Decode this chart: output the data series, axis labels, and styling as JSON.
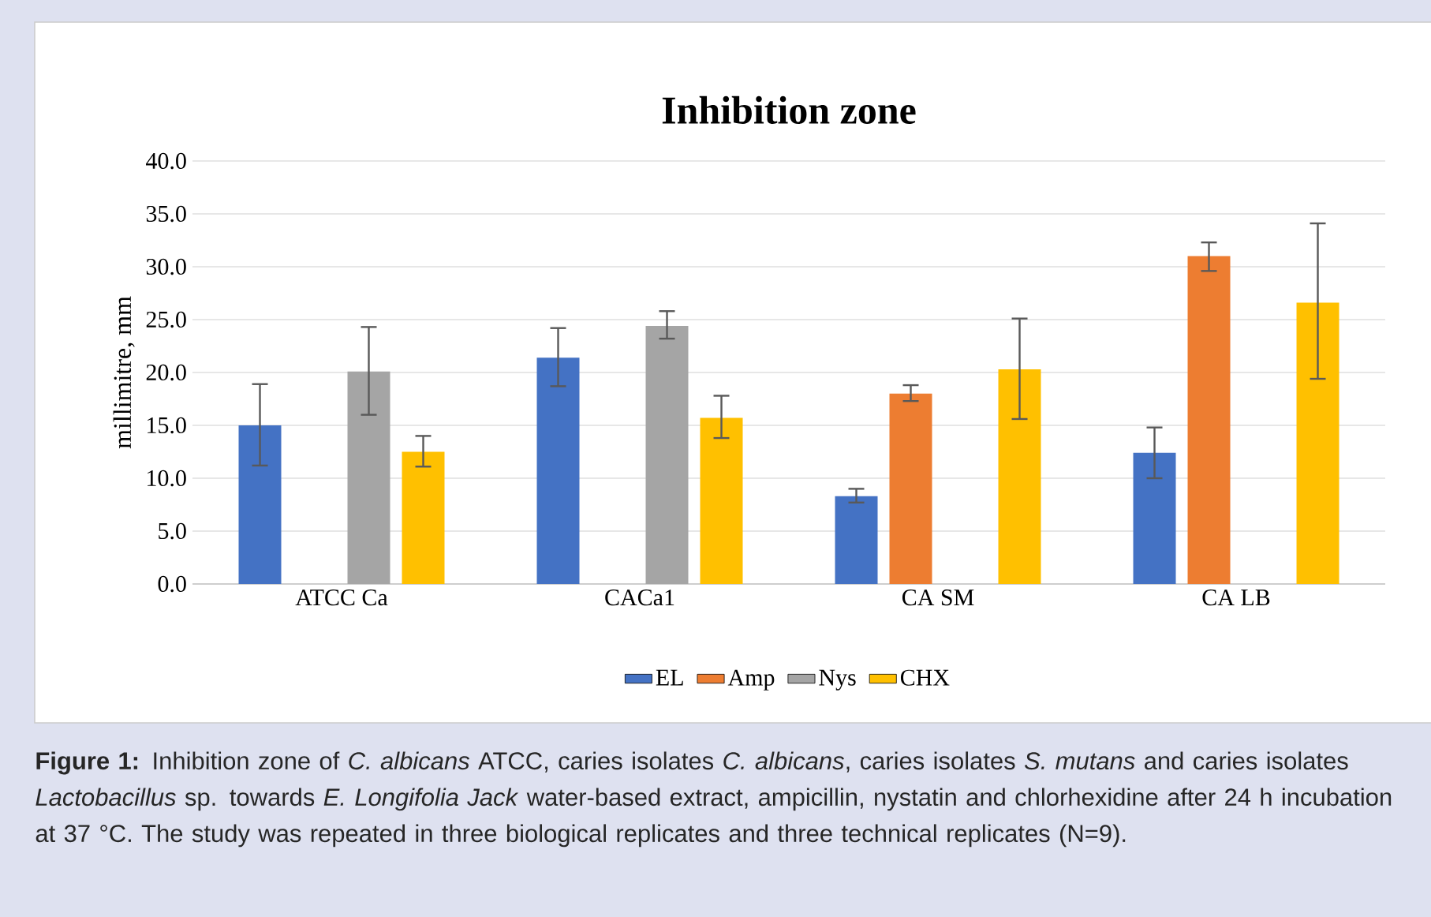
{
  "chart_data": {
    "type": "bar",
    "title": "Inhibition zone",
    "ylabel": "millimitre, mm",
    "categories": [
      "ATCC Ca",
      "CACa1",
      "CA SM",
      "CA LB"
    ],
    "series": [
      {
        "name": "EL",
        "color": "#4472c4",
        "values": [
          15.0,
          21.4,
          8.3,
          12.4
        ],
        "errors": [
          [
            11.2,
            18.9
          ],
          [
            18.7,
            24.2
          ],
          [
            7.7,
            9.0
          ],
          [
            10.0,
            14.8
          ]
        ]
      },
      {
        "name": "Amp",
        "color": "#ed7d31",
        "values": [
          0,
          0,
          18.0,
          31.0
        ],
        "errors": [
          null,
          null,
          [
            17.3,
            18.8
          ],
          [
            29.6,
            32.3
          ]
        ]
      },
      {
        "name": "Nys",
        "color": "#a5a5a5",
        "values": [
          20.1,
          24.4,
          0,
          0
        ],
        "errors": [
          [
            16.0,
            24.3
          ],
          [
            23.2,
            25.8
          ],
          null,
          null
        ]
      },
      {
        "name": "CHX",
        "color": "#ffc000",
        "values": [
          12.5,
          15.7,
          20.3,
          26.6
        ],
        "errors": [
          [
            11.1,
            14.0
          ],
          [
            13.8,
            17.8
          ],
          [
            15.6,
            25.1
          ],
          [
            19.4,
            34.1
          ]
        ]
      }
    ],
    "ylim": [
      0,
      40
    ],
    "yticks": [
      {
        "value": 0,
        "label": "0.0"
      },
      {
        "value": 5,
        "label": "5.0"
      },
      {
        "value": 10,
        "label": "10.0"
      },
      {
        "value": 15,
        "label": "15.0"
      },
      {
        "value": 20,
        "label": "20.0"
      },
      {
        "value": 25,
        "label": "25.0"
      },
      {
        "value": 30,
        "label": "30.0"
      },
      {
        "value": 35,
        "label": "35.0"
      },
      {
        "value": 40,
        "label": "40.0"
      }
    ],
    "grid": "y",
    "legend": "bottom",
    "annotations": [
      "**Figure 1:** Inhibition zone of *C. albicans* ATCC, caries isolates *C. albicans*, caries isolates *S. mutans* and caries isolates *Lactobacillus* sp. towards *E. Longifolia Jack* water-based extract, ampicillin, nystatin and chlorhexidine after 24 h incubation at 37 °C. The study was repeated in three biological replicates and three technical replicates (N=9)."
    ]
  }
}
